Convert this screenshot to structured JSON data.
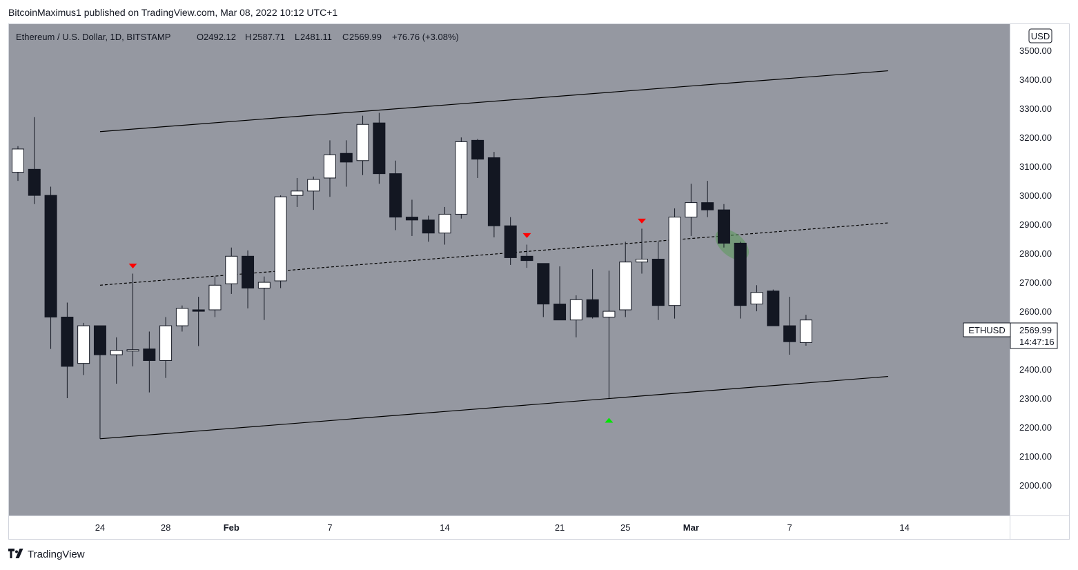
{
  "header": {
    "publisher_line": "BitcoinMaximus1 published on TradingView.com, Mar 08, 2022 10:12 UTC+1"
  },
  "chart_legend": {
    "symbol": "Ethereum / U.S. Dollar, 1D, BITSTAMP",
    "o_label": "O",
    "o_value": "2492.12",
    "h_label": "H",
    "h_value": "2587.71",
    "l_label": "L",
    "l_value": "2481.11",
    "c_label": "C",
    "c_value": "2569.99",
    "change": "+76.76 (+3.08%)"
  },
  "price_scale": {
    "currency": "USD",
    "ticker_label": "ETHUSD",
    "last_price": "2569.99",
    "countdown": "14:47:16"
  },
  "footer": {
    "brand": "TradingView",
    "logo_icon": "tradingview-logo-icon"
  },
  "colors": {
    "pane_bg": "#9598a1",
    "bull": "#ffffff",
    "bear": "#131722",
    "marker_down": "#ff0000",
    "marker_up": "#00e600",
    "highlight": "#5a9a5a"
  },
  "chart_data": {
    "type": "candlestick",
    "title": "",
    "xlabel": "",
    "ylabel": "",
    "ylim": [
      1950,
      3560
    ],
    "y_ticks": [
      "3500.00",
      "3400.00",
      "3300.00",
      "3200.00",
      "3100.00",
      "3000.00",
      "2900.00",
      "2800.00",
      "2700.00",
      "2600.00",
      "2500.00",
      "2400.00",
      "2300.00",
      "2200.00",
      "2100.00",
      "2000.00"
    ],
    "x_ticks": [
      {
        "label": "24",
        "date": "2022-01-24",
        "bold": false
      },
      {
        "label": "28",
        "date": "2022-01-28",
        "bold": false
      },
      {
        "label": "Feb",
        "date": "2022-02-01",
        "bold": true
      },
      {
        "label": "7",
        "date": "2022-02-07",
        "bold": false
      },
      {
        "label": "14",
        "date": "2022-02-14",
        "bold": false
      },
      {
        "label": "21",
        "date": "2022-02-21",
        "bold": false
      },
      {
        "label": "25",
        "date": "2022-02-25",
        "bold": false
      },
      {
        "label": "Mar",
        "date": "2022-03-01",
        "bold": true
      },
      {
        "label": "7",
        "date": "2022-03-07",
        "bold": false
      },
      {
        "label": "14",
        "date": "2022-03-14",
        "bold": false
      }
    ],
    "x_range": [
      "2022-01-19",
      "2022-03-17"
    ],
    "candles": [
      {
        "date": "2022-01-19",
        "o": 3080,
        "h": 3170,
        "l": 3050,
        "c": 3160
      },
      {
        "date": "2022-01-20",
        "o": 3090,
        "h": 3270,
        "l": 2970,
        "c": 3000
      },
      {
        "date": "2022-01-21",
        "o": 3000,
        "h": 3030,
        "l": 2470,
        "c": 2580
      },
      {
        "date": "2022-01-22",
        "o": 2580,
        "h": 2630,
        "l": 2300,
        "c": 2410
      },
      {
        "date": "2022-01-23",
        "o": 2420,
        "h": 2560,
        "l": 2380,
        "c": 2550
      },
      {
        "date": "2022-01-24",
        "o": 2550,
        "h": 2550,
        "l": 2160,
        "c": 2450
      },
      {
        "date": "2022-01-25",
        "o": 2450,
        "h": 2510,
        "l": 2350,
        "c": 2465
      },
      {
        "date": "2022-01-26",
        "o": 2465,
        "h": 2730,
        "l": 2410,
        "c": 2465
      },
      {
        "date": "2022-01-27",
        "o": 2470,
        "h": 2530,
        "l": 2320,
        "c": 2430
      },
      {
        "date": "2022-01-28",
        "o": 2430,
        "h": 2580,
        "l": 2370,
        "c": 2550
      },
      {
        "date": "2022-01-29",
        "o": 2550,
        "h": 2620,
        "l": 2530,
        "c": 2610
      },
      {
        "date": "2022-01-30",
        "o": 2605,
        "h": 2650,
        "l": 2480,
        "c": 2600
      },
      {
        "date": "2022-01-31",
        "o": 2605,
        "h": 2720,
        "l": 2580,
        "c": 2690
      },
      {
        "date": "2022-02-01",
        "o": 2695,
        "h": 2820,
        "l": 2660,
        "c": 2790
      },
      {
        "date": "2022-02-02",
        "o": 2790,
        "h": 2810,
        "l": 2610,
        "c": 2680
      },
      {
        "date": "2022-02-03",
        "o": 2680,
        "h": 2720,
        "l": 2570,
        "c": 2700
      },
      {
        "date": "2022-02-04",
        "o": 2705,
        "h": 3000,
        "l": 2680,
        "c": 2995
      },
      {
        "date": "2022-02-05",
        "o": 3000,
        "h": 3060,
        "l": 2960,
        "c": 3015
      },
      {
        "date": "2022-02-06",
        "o": 3015,
        "h": 3065,
        "l": 2950,
        "c": 3055
      },
      {
        "date": "2022-02-07",
        "o": 3060,
        "h": 3190,
        "l": 2995,
        "c": 3140
      },
      {
        "date": "2022-02-08",
        "o": 3145,
        "h": 3190,
        "l": 3030,
        "c": 3115
      },
      {
        "date": "2022-02-09",
        "o": 3120,
        "h": 3275,
        "l": 3070,
        "c": 3245
      },
      {
        "date": "2022-02-10",
        "o": 3250,
        "h": 3285,
        "l": 3040,
        "c": 3075
      },
      {
        "date": "2022-02-11",
        "o": 3075,
        "h": 3120,
        "l": 2880,
        "c": 2925
      },
      {
        "date": "2022-02-12",
        "o": 2925,
        "h": 2985,
        "l": 2860,
        "c": 2915
      },
      {
        "date": "2022-02-13",
        "o": 2915,
        "h": 2930,
        "l": 2840,
        "c": 2870
      },
      {
        "date": "2022-02-14",
        "o": 2870,
        "h": 2960,
        "l": 2830,
        "c": 2935
      },
      {
        "date": "2022-02-15",
        "o": 2935,
        "h": 3200,
        "l": 2920,
        "c": 3185
      },
      {
        "date": "2022-02-16",
        "o": 3190,
        "h": 3195,
        "l": 3060,
        "c": 3125
      },
      {
        "date": "2022-02-17",
        "o": 3130,
        "h": 3150,
        "l": 2855,
        "c": 2895
      },
      {
        "date": "2022-02-18",
        "o": 2895,
        "h": 2925,
        "l": 2760,
        "c": 2785
      },
      {
        "date": "2022-02-19",
        "o": 2790,
        "h": 2830,
        "l": 2750,
        "c": 2775
      },
      {
        "date": "2022-02-20",
        "o": 2765,
        "h": 2765,
        "l": 2580,
        "c": 2625
      },
      {
        "date": "2022-02-21",
        "o": 2625,
        "h": 2755,
        "l": 2570,
        "c": 2570
      },
      {
        "date": "2022-02-22",
        "o": 2570,
        "h": 2655,
        "l": 2510,
        "c": 2640
      },
      {
        "date": "2022-02-23",
        "o": 2640,
        "h": 2745,
        "l": 2575,
        "c": 2580
      },
      {
        "date": "2022-02-24",
        "o": 2580,
        "h": 2740,
        "l": 2300,
        "c": 2600
      },
      {
        "date": "2022-02-25",
        "o": 2605,
        "h": 2840,
        "l": 2580,
        "c": 2770
      },
      {
        "date": "2022-02-26",
        "o": 2770,
        "h": 2885,
        "l": 2730,
        "c": 2780
      },
      {
        "date": "2022-02-27",
        "o": 2780,
        "h": 2840,
        "l": 2570,
        "c": 2620
      },
      {
        "date": "2022-02-28",
        "o": 2620,
        "h": 2955,
        "l": 2575,
        "c": 2925
      },
      {
        "date": "2022-03-01",
        "o": 2925,
        "h": 3040,
        "l": 2860,
        "c": 2975
      },
      {
        "date": "2022-03-02",
        "o": 2975,
        "h": 3050,
        "l": 2925,
        "c": 2950
      },
      {
        "date": "2022-03-03",
        "o": 2950,
        "h": 2970,
        "l": 2820,
        "c": 2835
      },
      {
        "date": "2022-03-04",
        "o": 2835,
        "h": 2840,
        "l": 2575,
        "c": 2620
      },
      {
        "date": "2022-03-05",
        "o": 2625,
        "h": 2690,
        "l": 2600,
        "c": 2665
      },
      {
        "date": "2022-03-06",
        "o": 2670,
        "h": 2675,
        "l": 2550,
        "c": 2550
      },
      {
        "date": "2022-03-07",
        "o": 2550,
        "h": 2650,
        "l": 2450,
        "c": 2495
      },
      {
        "date": "2022-03-08",
        "o": 2492.12,
        "h": 2587.71,
        "l": 2481.11,
        "c": 2569.99
      }
    ],
    "trendlines": [
      {
        "name": "channel-resistance",
        "style": "solid",
        "from": {
          "date": "2022-01-24",
          "price": 3220
        },
        "to": {
          "date": "2022-03-13",
          "price": 3430
        }
      },
      {
        "name": "channel-support",
        "style": "solid",
        "from": {
          "date": "2022-01-24",
          "price": 2160
        },
        "to": {
          "date": "2022-03-13",
          "price": 2375
        }
      },
      {
        "name": "channel-midline",
        "style": "dashed",
        "from": {
          "date": "2022-01-24",
          "price": 2690
        },
        "to": {
          "date": "2022-03-13",
          "price": 2905
        }
      }
    ],
    "markers": [
      {
        "date": "2022-01-26",
        "price": 2755,
        "direction": "down"
      },
      {
        "date": "2022-02-19",
        "price": 2860,
        "direction": "down"
      },
      {
        "date": "2022-02-26",
        "price": 2910,
        "direction": "down"
      },
      {
        "date": "2022-02-24",
        "price": 2225,
        "direction": "up"
      }
    ],
    "highlights": [
      {
        "date_from": "2022-03-03",
        "date_to": "2022-03-04",
        "price_from": 2780,
        "price_to": 2880
      }
    ]
  }
}
